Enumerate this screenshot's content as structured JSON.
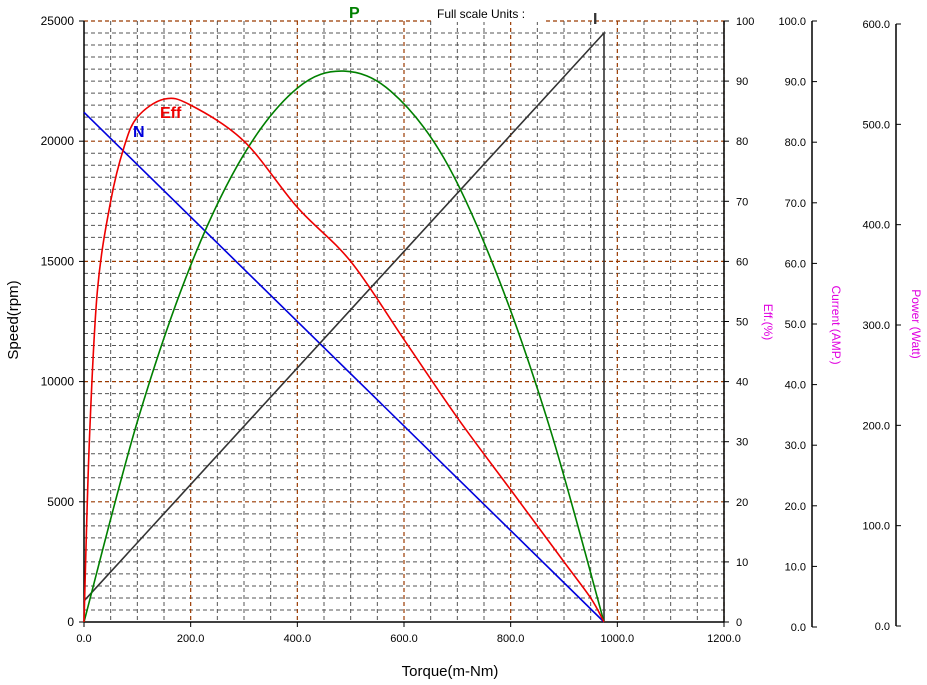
{
  "chart_data": {
    "type": "line",
    "header_text": "Full scale Units :",
    "xlabel": "Torque(m-Nm)",
    "ylabel": "Speed(rpm)",
    "eff_axis_label": "Eff.(%)",
    "current_axis_label": "Current (AMP.)",
    "power_axis_label": "Power (Watt)",
    "xlim": [
      0,
      1200
    ],
    "x_ticks": [
      "0.0",
      "200.0",
      "400.0",
      "600.0",
      "800.0",
      "1000.0",
      "1200.0"
    ],
    "speed_axis": {
      "range": [
        0,
        25000
      ],
      "ticks": [
        "0",
        "5000",
        "10000",
        "15000",
        "20000",
        "25000"
      ]
    },
    "eff_axis": {
      "range": [
        0,
        100
      ],
      "ticks": [
        "0",
        "10",
        "20",
        "30",
        "40",
        "50",
        "60",
        "70",
        "80",
        "90",
        "100"
      ]
    },
    "current_axis": {
      "range": [
        0,
        100
      ],
      "ticks": [
        "0.0",
        "10.0",
        "20.0",
        "30.0",
        "40.0",
        "50.0",
        "60.0",
        "70.0",
        "80.0",
        "90.0",
        "100.0"
      ]
    },
    "power_axis": {
      "range": [
        0,
        600
      ],
      "ticks": [
        "0.0",
        "100.0",
        "200.0",
        "300.0",
        "400.0",
        "500.0",
        "600.0"
      ]
    },
    "grid": true,
    "series": [
      {
        "name": "N",
        "axis": "speed",
        "color": "#0000dd",
        "x": [
          0,
          975
        ],
        "y": [
          21200,
          0
        ]
      },
      {
        "name": "I",
        "axis": "current",
        "color": "#333333",
        "x": [
          0,
          975,
          975
        ],
        "y": [
          3.5,
          98,
          0
        ]
      },
      {
        "name": "P",
        "axis": "power",
        "color": "#008000",
        "x": [
          0,
          100,
          200,
          300,
          400,
          487,
          575,
          675,
          775,
          875,
          975
        ],
        "y": [
          0,
          200,
          356,
          467,
          533,
          550,
          530,
          463,
          346,
          191,
          0
        ]
      },
      {
        "name": "Eff",
        "axis": "eff",
        "color": "#ee0000",
        "x": [
          0,
          10,
          25,
          50,
          75,
          100,
          150,
          200,
          300,
          400,
          500,
          600,
          700,
          800,
          900,
          950,
          975
        ],
        "y": [
          0,
          30,
          55,
          70,
          79,
          84,
          87,
          86,
          80,
          69,
          60,
          47,
          34,
          22,
          10,
          4,
          0
        ]
      }
    ]
  }
}
